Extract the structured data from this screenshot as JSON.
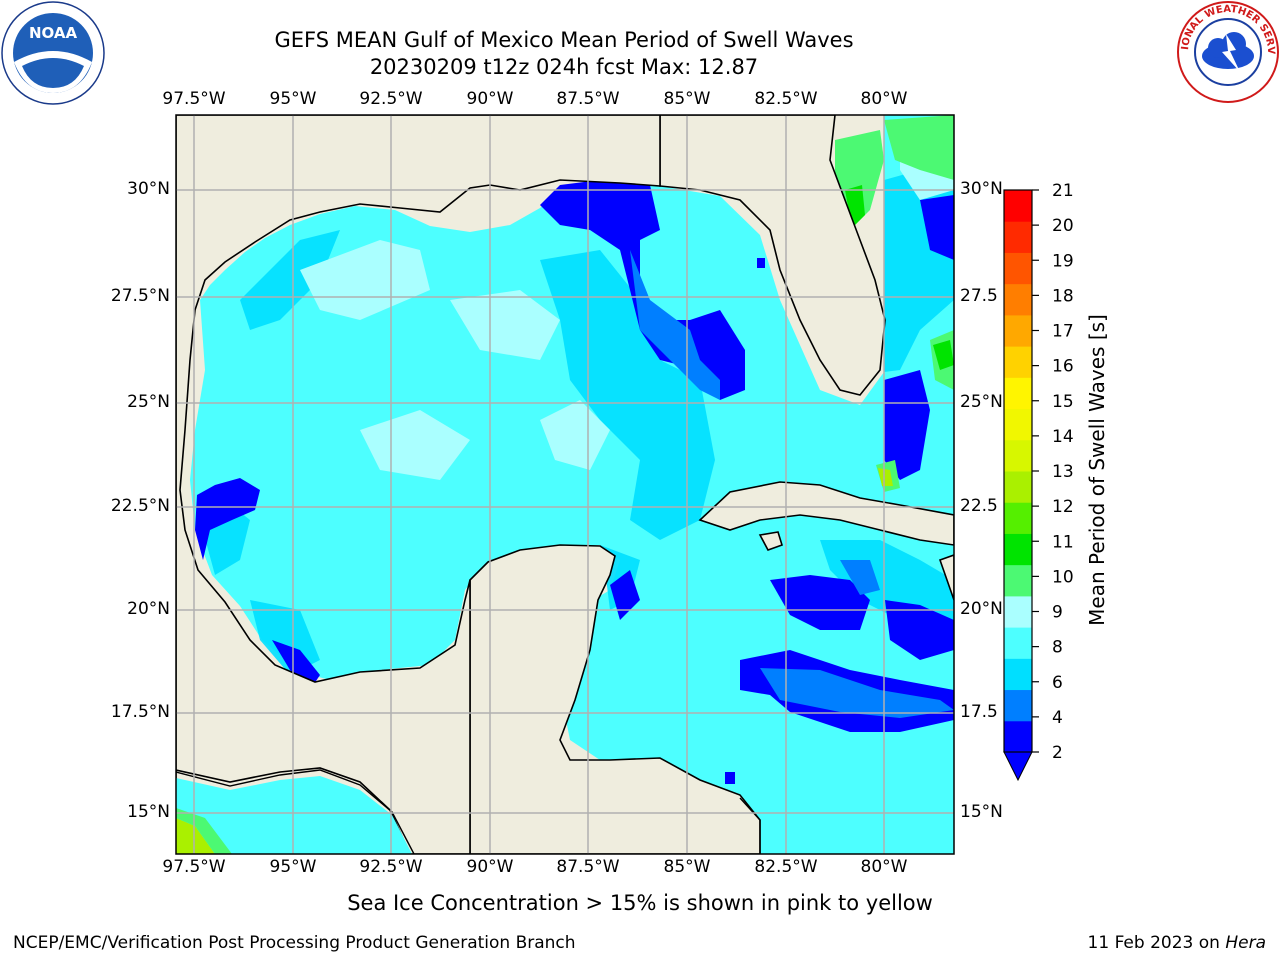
{
  "title": {
    "line1": "GEFS MEAN Gulf of Mexico Mean Period of Swell Waves",
    "line2": "20230209 t12z 024h fcst   Max: 12.87"
  },
  "map": {
    "lon_range": [
      -98.0,
      -78.2
    ],
    "lat_range": [
      14.0,
      31.8
    ],
    "lon_ticks_top": [
      "97.5°W",
      "95°W",
      "92.5°W",
      "90°W",
      "87.5°W",
      "85°W",
      "82.5°W",
      "80°W"
    ],
    "lon_ticks_bottom": [
      "97.5°W",
      "95°W",
      "92.5°W",
      "90°W",
      "87.5°W",
      "85°W",
      "82.5°W",
      "80°W"
    ],
    "lat_ticks_left": [
      "30°N",
      "27.5°N",
      "25°N",
      "22.5°N",
      "20°N",
      "17.5°N",
      "15°N"
    ],
    "lat_ticks_right": [
      "30°N",
      "27.5",
      "25°N",
      "22.5",
      "20°N",
      "17.5",
      "15°N"
    ],
    "grid": true,
    "land_color": "#efedde",
    "ocean_fill_color": "#4dffff",
    "max_value": 12.87
  },
  "colorbar": {
    "label": "Mean Period of Swell Waves [s]",
    "ticks": [
      "21",
      "20",
      "19",
      "18",
      "17",
      "16",
      "15",
      "14",
      "13",
      "12",
      "11",
      "10",
      "9",
      "8",
      "6",
      "4",
      "2"
    ],
    "colors_bottom_to_top": [
      "#0000ff",
      "#007fff",
      "#00dfff",
      "#4dffff",
      "#aaffff",
      "#4cf973",
      "#00e400",
      "#55ef00",
      "#aaf000",
      "#d7f700",
      "#f1f700",
      "#fff500",
      "#ffd200",
      "#ffa800",
      "#ff7e00",
      "#ff5500",
      "#ff2a00",
      "#ff0000"
    ],
    "extend_below": true
  },
  "ice_note": "Sea Ice Concentration > 15% is shown in pink to yellow",
  "footer": {
    "left": "NCEP/EMC/Verification Post Processing Product Generation Branch",
    "date": "11 Feb 2023 on ",
    "machine": "Hera"
  },
  "logos": {
    "left": "noaa-logo",
    "right": "national-weather-service-logo",
    "nws_text": "NATIONAL WEATHER SERVICE"
  }
}
